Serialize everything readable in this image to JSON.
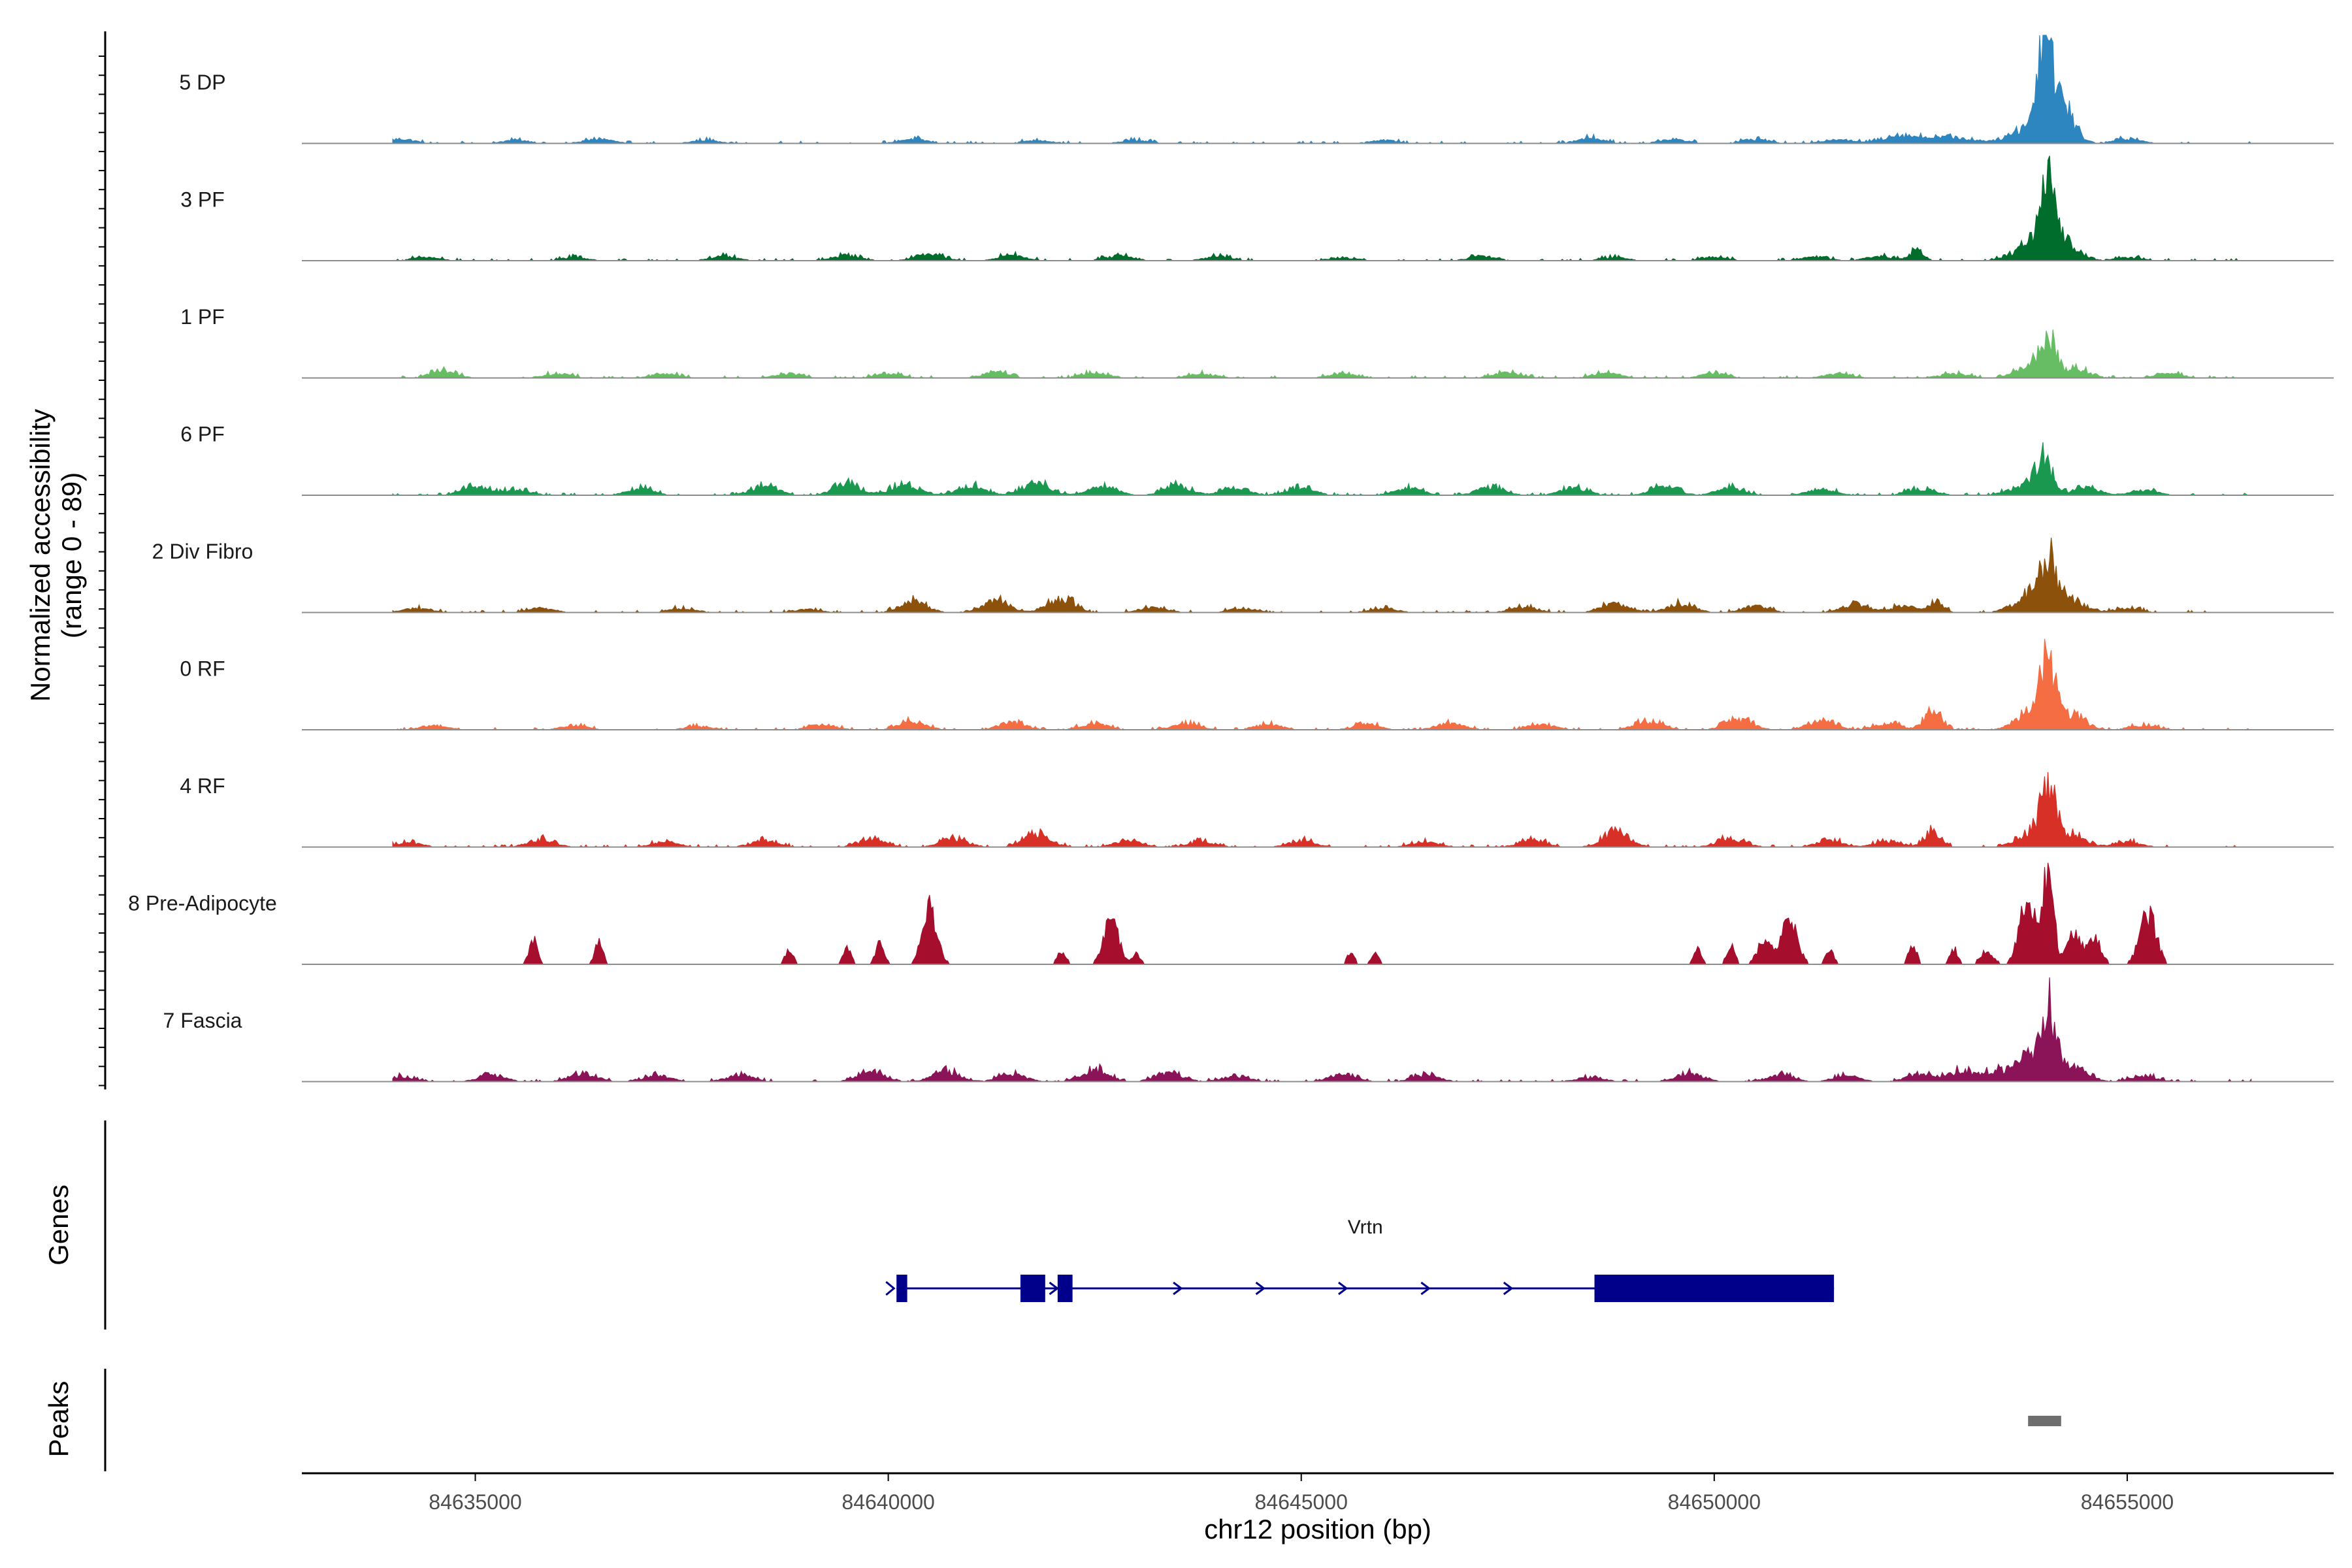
{
  "colors": {
    "axis": "#000000",
    "baseline": "#8c8c8c",
    "gene": "#00008b",
    "peak": "#6e6e6e",
    "tick_text": "#4d4d4d"
  },
  "chart_data": {
    "type": "area",
    "title": "",
    "chromosome": "chr12",
    "xlabel": "chr12 position (bp)",
    "ylabel_line1": "Normalized accessibility",
    "ylabel_line2": "(range 0 - 89)",
    "ylim": [
      0,
      89
    ],
    "xlim": [
      84632900,
      84657500
    ],
    "x_ticks": [
      84635000,
      84640000,
      84645000,
      84650000,
      84655000
    ],
    "x_tick_labels": [
      "84635000",
      "84640000",
      "84645000",
      "84650000",
      "84655000"
    ],
    "signal_range": [
      84634000,
      84656500
    ],
    "tracks": [
      {
        "name": "5 DP",
        "color": "#2e86c1",
        "peaks": [
          [
            84654000,
            89,
            70
          ],
          [
            84654150,
            45,
            160
          ],
          [
            84653800,
            14,
            200
          ],
          [
            84652700,
            6,
            400
          ]
        ],
        "bumps": [
          [
            84634100,
            4
          ],
          [
            84635500,
            3
          ],
          [
            84636500,
            4
          ],
          [
            84637800,
            3
          ],
          [
            84640300,
            4
          ],
          [
            84641800,
            3
          ],
          [
            84643000,
            3
          ],
          [
            84646000,
            3
          ],
          [
            84648500,
            5
          ],
          [
            84649500,
            4
          ],
          [
            84650500,
            4
          ],
          [
            84651500,
            4
          ],
          [
            84652200,
            5
          ],
          [
            84655000,
            4
          ]
        ]
      },
      {
        "name": "3 PF",
        "color": "#006d2c",
        "peaks": [
          [
            84654050,
            52,
            90
          ],
          [
            84653900,
            18,
            220
          ],
          [
            84654300,
            12,
            150
          ],
          [
            84652450,
            10,
            80
          ]
        ],
        "bumps": [
          [
            84634400,
            3
          ],
          [
            84636200,
            3
          ],
          [
            84638000,
            4
          ],
          [
            84639500,
            5
          ],
          [
            84640500,
            6
          ],
          [
            84641500,
            5
          ],
          [
            84642800,
            5
          ],
          [
            84644000,
            4
          ],
          [
            84645500,
            3
          ],
          [
            84647200,
            4
          ],
          [
            84648800,
            3
          ],
          [
            84650000,
            3
          ],
          [
            84651200,
            4
          ],
          [
            84652000,
            4
          ],
          [
            84655000,
            3
          ]
        ]
      },
      {
        "name": "1 PF",
        "color": "#66bd63",
        "peaks": [
          [
            84654050,
            28,
            80
          ],
          [
            84653900,
            14,
            200
          ],
          [
            84654400,
            8,
            150
          ]
        ],
        "bumps": [
          [
            84634600,
            6
          ],
          [
            84636000,
            4
          ],
          [
            84637300,
            4
          ],
          [
            84638800,
            4
          ],
          [
            84640000,
            4
          ],
          [
            84641300,
            5
          ],
          [
            84642500,
            5
          ],
          [
            84643800,
            4
          ],
          [
            84645500,
            4
          ],
          [
            84647500,
            5
          ],
          [
            84648700,
            5
          ],
          [
            84650000,
            4
          ],
          [
            84651500,
            4
          ],
          [
            84652900,
            4
          ],
          [
            84655500,
            4
          ]
        ]
      },
      {
        "name": "6 PF",
        "color": "#1a9850",
        "peaks": [
          [
            84654000,
            30,
            90
          ],
          [
            84653800,
            10,
            200
          ],
          [
            84654500,
            7,
            160
          ]
        ],
        "bumps": [
          [
            84635000,
            8
          ],
          [
            84635500,
            5
          ],
          [
            84637000,
            6
          ],
          [
            84638500,
            9
          ],
          [
            84639500,
            11
          ],
          [
            84640200,
            10
          ],
          [
            84641000,
            9
          ],
          [
            84641800,
            12
          ],
          [
            84642600,
            9
          ],
          [
            84643500,
            9
          ],
          [
            84644200,
            7
          ],
          [
            84645000,
            7
          ],
          [
            84646300,
            7
          ],
          [
            84647300,
            8
          ],
          [
            84648300,
            7
          ],
          [
            84649400,
            8
          ],
          [
            84650200,
            7
          ],
          [
            84651300,
            6
          ],
          [
            84652500,
            6
          ],
          [
            84655200,
            5
          ]
        ]
      },
      {
        "name": "2 Div Fibro",
        "color": "#8c510a",
        "peaks": [
          [
            84654050,
            40,
            100
          ],
          [
            84653850,
            16,
            200
          ],
          [
            84654350,
            10,
            160
          ],
          [
            84652700,
            10,
            80
          ]
        ],
        "bumps": [
          [
            84634300,
            4
          ],
          [
            84635800,
            4
          ],
          [
            84637500,
            4
          ],
          [
            84639000,
            3
          ],
          [
            84640300,
            11
          ],
          [
            84641300,
            12
          ],
          [
            84642100,
            13
          ],
          [
            84643200,
            5
          ],
          [
            84644300,
            4
          ],
          [
            84646000,
            4
          ],
          [
            84647700,
            5
          ],
          [
            84648800,
            9
          ],
          [
            84649600,
            8
          ],
          [
            84650500,
            6
          ],
          [
            84651700,
            7
          ],
          [
            84652300,
            6
          ],
          [
            84655000,
            4
          ]
        ]
      },
      {
        "name": "0 RF",
        "color": "#f46d43",
        "peaks": [
          [
            84654050,
            58,
            90
          ],
          [
            84653850,
            18,
            180
          ],
          [
            84654350,
            13,
            150
          ],
          [
            84652650,
            18,
            100
          ]
        ],
        "bumps": [
          [
            84634500,
            4
          ],
          [
            84636200,
            4
          ],
          [
            84637700,
            3
          ],
          [
            84639200,
            5
          ],
          [
            84640300,
            8
          ],
          [
            84641500,
            7
          ],
          [
            84642500,
            6
          ],
          [
            84643600,
            6
          ],
          [
            84644600,
            5
          ],
          [
            84645800,
            5
          ],
          [
            84646800,
            6
          ],
          [
            84647900,
            5
          ],
          [
            84649200,
            8
          ],
          [
            84650300,
            10
          ],
          [
            84651300,
            8
          ],
          [
            84652100,
            6
          ],
          [
            84655200,
            4
          ]
        ]
      },
      {
        "name": "4 RF",
        "color": "#d73027",
        "peaks": [
          [
            84654050,
            48,
            90
          ],
          [
            84653900,
            14,
            200
          ],
          [
            84654350,
            10,
            150
          ],
          [
            84652650,
            14,
            100
          ]
        ],
        "bumps": [
          [
            84634200,
            4
          ],
          [
            84635800,
            7
          ],
          [
            84637300,
            5
          ],
          [
            84638500,
            6
          ],
          [
            84639800,
            7
          ],
          [
            84640800,
            8
          ],
          [
            84641800,
            12
          ],
          [
            84642900,
            6
          ],
          [
            84643800,
            5
          ],
          [
            84645000,
            6
          ],
          [
            84646500,
            5
          ],
          [
            84647800,
            7
          ],
          [
            84648800,
            13
          ],
          [
            84650200,
            8
          ],
          [
            84651400,
            6
          ],
          [
            84652100,
            5
          ],
          [
            84655000,
            5
          ]
        ]
      },
      {
        "name": "8 Pre-Adipocyte",
        "color": "#a50f2d",
        "peaks": [
          [
            84654050,
            89,
            60
          ],
          [
            84653800,
            60,
            100
          ],
          [
            84654350,
            30,
            80
          ],
          [
            84654600,
            25,
            80
          ],
          [
            84655250,
            45,
            100
          ],
          [
            84653300,
            12,
            80
          ],
          [
            84650900,
            40,
            100
          ],
          [
            84650600,
            20,
            80
          ],
          [
            84640500,
            50,
            90
          ],
          [
            84642700,
            40,
            90
          ]
        ],
        "bumps": [
          [
            84635700,
            22
          ],
          [
            84636500,
            20
          ],
          [
            84638800,
            12
          ],
          [
            84639500,
            16
          ],
          [
            84639900,
            20
          ],
          [
            84642100,
            12
          ],
          [
            84643000,
            10
          ],
          [
            84645600,
            10
          ],
          [
            84645900,
            10
          ],
          [
            84649800,
            14
          ],
          [
            84650200,
            16
          ],
          [
            84651400,
            12
          ],
          [
            84652400,
            18
          ],
          [
            84652900,
            14
          ]
        ]
      },
      {
        "name": "7 Fascia",
        "color": "#8b1357",
        "peaks": [
          [
            84654050,
            55,
            90
          ],
          [
            84653850,
            22,
            200
          ],
          [
            84654350,
            14,
            160
          ],
          [
            84653400,
            8,
            150
          ]
        ],
        "bumps": [
          [
            84634100,
            5
          ],
          [
            84635200,
            6
          ],
          [
            84636300,
            8
          ],
          [
            84637200,
            6
          ],
          [
            84638200,
            6
          ],
          [
            84639800,
            9
          ],
          [
            84640700,
            10
          ],
          [
            84641500,
            7
          ],
          [
            84642500,
            11
          ],
          [
            84643400,
            8
          ],
          [
            84644200,
            5
          ],
          [
            84645500,
            7
          ],
          [
            84646500,
            6
          ],
          [
            84648500,
            4
          ],
          [
            84649700,
            8
          ],
          [
            84650800,
            6
          ],
          [
            84651600,
            5
          ],
          [
            84652500,
            7
          ],
          [
            84653000,
            10
          ],
          [
            84655200,
            5
          ]
        ]
      }
    ],
    "genes_track_label": "Genes",
    "peaks_track_label": "Peaks",
    "gene": {
      "name": "Vrtn",
      "strand": "+",
      "start": 84640100,
      "end": 84651450,
      "exons": [
        [
          84640100,
          84640230
        ],
        [
          84641600,
          84641900
        ],
        [
          84642050,
          84642230
        ],
        [
          84648550,
          84651450
        ]
      ],
      "arrows": [
        84642000,
        84643500,
        84644500,
        84645500,
        84646500,
        84647500
      ]
    },
    "peak_regions": [
      [
        84653800,
        84654200
      ]
    ]
  }
}
